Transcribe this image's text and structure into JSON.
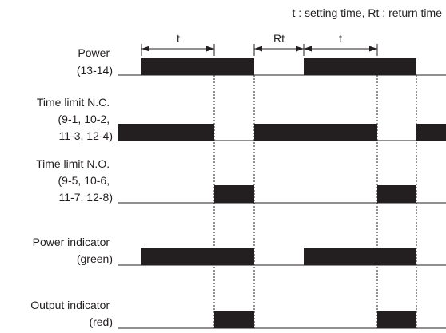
{
  "legend": "t : setting time, Rt : return time",
  "interval_labels": [
    "t",
    "Rt",
    "t"
  ],
  "signals": [
    {
      "id": "power",
      "label_lines": [
        "Power",
        "(13-14)"
      ]
    },
    {
      "id": "nc",
      "label_lines": [
        "Time limit N.C.",
        "(9-1, 10-2,",
        "11-3, 12-4)"
      ]
    },
    {
      "id": "no",
      "label_lines": [
        "Time limit N.O.",
        "(9-5, 10-6,",
        "11-7, 12-8)"
      ]
    },
    {
      "id": "power-ind",
      "label_lines": [
        "Power indicator",
        "(green)"
      ]
    },
    {
      "id": "output-ind",
      "label_lines": [
        "Output indicator",
        "(red)"
      ]
    }
  ],
  "colors": {
    "ink": "#231f20",
    "background": "#ffffff"
  }
}
